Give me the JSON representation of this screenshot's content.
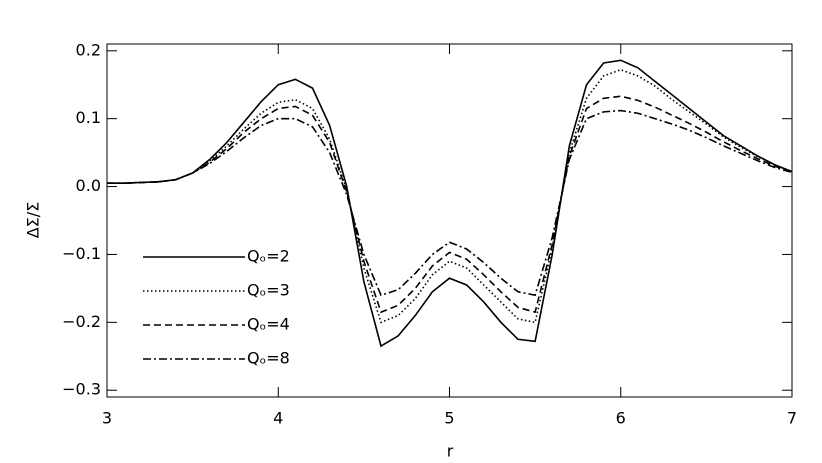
{
  "chart_data": {
    "type": "line",
    "xlabel": "r",
    "ylabel": "ΔΣ/Σ",
    "x": [
      3.0,
      3.1,
      3.2,
      3.3,
      3.4,
      3.5,
      3.6,
      3.7,
      3.8,
      3.9,
      4.0,
      4.1,
      4.2,
      4.3,
      4.4,
      4.5,
      4.6,
      4.7,
      4.8,
      4.9,
      5.0,
      5.1,
      5.2,
      5.3,
      5.4,
      5.5,
      5.6,
      5.7,
      5.8,
      5.9,
      6.0,
      6.1,
      6.2,
      6.3,
      6.4,
      6.5,
      6.6,
      6.7,
      6.8,
      6.9,
      7.0
    ],
    "series": [
      {
        "name": "Qₒ=2",
        "color": "#000000",
        "dash": "solid",
        "values": [
          0.005,
          0.005,
          0.006,
          0.007,
          0.01,
          0.02,
          0.04,
          0.065,
          0.095,
          0.125,
          0.15,
          0.158,
          0.145,
          0.09,
          0.0,
          -0.14,
          -0.235,
          -0.22,
          -0.19,
          -0.155,
          -0.135,
          -0.145,
          -0.17,
          -0.2,
          -0.225,
          -0.228,
          -0.1,
          0.06,
          0.15,
          0.182,
          0.186,
          0.175,
          0.155,
          0.135,
          0.115,
          0.095,
          0.075,
          0.06,
          0.045,
          0.032,
          0.022
        ]
      },
      {
        "name": "Qₒ=3",
        "color": "#000000",
        "dash": "dotted",
        "values": [
          0.005,
          0.005,
          0.006,
          0.007,
          0.01,
          0.02,
          0.038,
          0.06,
          0.085,
          0.108,
          0.124,
          0.128,
          0.115,
          0.07,
          -0.005,
          -0.12,
          -0.2,
          -0.19,
          -0.165,
          -0.13,
          -0.11,
          -0.12,
          -0.145,
          -0.17,
          -0.195,
          -0.2,
          -0.09,
          0.05,
          0.13,
          0.163,
          0.172,
          0.163,
          0.148,
          0.128,
          0.11,
          0.092,
          0.073,
          0.058,
          0.044,
          0.032,
          0.022
        ]
      },
      {
        "name": "Qₒ=4",
        "color": "#000000",
        "dash": "dashed",
        "values": [
          0.005,
          0.005,
          0.006,
          0.007,
          0.01,
          0.02,
          0.036,
          0.056,
          0.08,
          0.1,
          0.115,
          0.118,
          0.105,
          0.065,
          -0.008,
          -0.11,
          -0.185,
          -0.175,
          -0.15,
          -0.117,
          -0.097,
          -0.107,
          -0.13,
          -0.155,
          -0.178,
          -0.185,
          -0.085,
          0.045,
          0.115,
          0.13,
          0.133,
          0.127,
          0.117,
          0.105,
          0.093,
          0.08,
          0.066,
          0.053,
          0.041,
          0.03,
          0.022
        ]
      },
      {
        "name": "Qₒ=8",
        "color": "#000000",
        "dash": "dashdot",
        "values": [
          0.005,
          0.005,
          0.006,
          0.007,
          0.01,
          0.02,
          0.034,
          0.052,
          0.072,
          0.09,
          0.1,
          0.1,
          0.088,
          0.05,
          -0.012,
          -0.1,
          -0.16,
          -0.152,
          -0.128,
          -0.1,
          -0.082,
          -0.092,
          -0.112,
          -0.135,
          -0.155,
          -0.16,
          -0.075,
          0.04,
          0.1,
          0.11,
          0.112,
          0.108,
          0.1,
          0.092,
          0.083,
          0.072,
          0.06,
          0.049,
          0.038,
          0.028,
          0.021
        ]
      }
    ],
    "xlim": [
      3,
      7
    ],
    "xticks": [
      3,
      4,
      5,
      6,
      7
    ],
    "ylim": [
      -0.31,
      0.21
    ],
    "yticks": [
      {
        "value": -0.3,
        "label": "−0.3"
      },
      {
        "value": -0.2,
        "label": "−0.2"
      },
      {
        "value": -0.1,
        "label": "−0.1"
      },
      {
        "value": 0,
        "label": "0.0"
      },
      0.1,
      0.2
    ],
    "grid": false,
    "legend": "lower left"
  }
}
